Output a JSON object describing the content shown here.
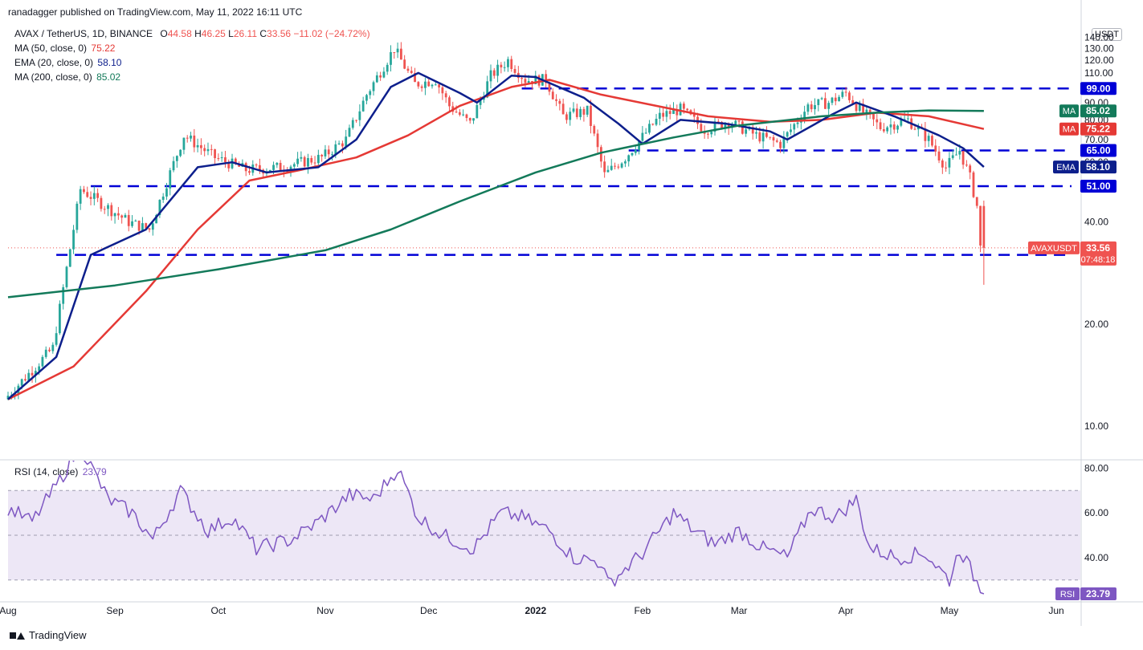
{
  "header": {
    "published": "ranadagger published on TradingView.com, May 11, 2022 16:11 UTC"
  },
  "legend": {
    "symbol": "AVAX / TetherUS, 1D, BINANCE",
    "o_label": "O",
    "o": "44.58",
    "h_label": "H",
    "h": "46.25",
    "l_label": "L",
    "l": "26.11",
    "c_label": "C",
    "c": "33.56",
    "change": "−11.02 (−24.72%)",
    "ma50": {
      "label": "MA (50, close, 0)",
      "value": "75.22"
    },
    "ema20": {
      "label": "EMA (20, close, 0)",
      "value": "58.10"
    },
    "ma200": {
      "label": "MA (200, close, 0)",
      "value": "85.02"
    },
    "rsi": {
      "label": "RSI (14, close)",
      "value": "23.79"
    }
  },
  "currency_label": "USDT",
  "footer": {
    "brand": "TradingView"
  },
  "colors": {
    "up": "#26a69a",
    "down": "#ef5350",
    "ma50": "#e53935",
    "ema20": "#0d1f8c",
    "ma200": "#137a5a",
    "levels": "#0000d6",
    "rsi": "#7e57c2",
    "rsi_band": "#ede7f6"
  },
  "chart_data": [
    {
      "type": "candlestick",
      "title": "AVAX / TetherUS, 1D, BINANCE",
      "x_tick_labels": [
        "Aug",
        "Sep",
        "Oct",
        "Nov",
        "Dec",
        "2022",
        "Feb",
        "Mar",
        "Apr",
        "May",
        "Jun"
      ],
      "x_range": [
        "2021-08-01",
        "2022-06-01"
      ],
      "y_ticks": [
        10,
        20,
        40,
        50,
        60,
        70,
        80,
        90,
        100,
        110,
        120,
        130,
        140
      ],
      "y_tick_labels": [
        "10.00",
        "20.00",
        "40.00",
        "50.00",
        "60.00",
        "70.00",
        "80.00",
        "90.00",
        "100.00",
        "110.00",
        "120.00",
        "130.00",
        "140.00"
      ],
      "y_scale": "log",
      "ylim": [
        8,
        155
      ],
      "horizontal_levels": [
        {
          "value": 99.0,
          "label": "99.00",
          "start": "2021-12-28"
        },
        {
          "value": 65.0,
          "label": "65.00",
          "start": "2022-01-28"
        },
        {
          "value": 51.0,
          "label": "51.00",
          "start": "2021-08-25"
        },
        {
          "value": 32.0,
          "label": "32.00",
          "start": "2021-08-15"
        }
      ],
      "key_points": [
        {
          "date": "2021-08-01",
          "close": 12
        },
        {
          "date": "2021-08-15",
          "close": 17
        },
        {
          "date": "2021-08-23",
          "close": 50
        },
        {
          "date": "2021-09-06",
          "close": 40
        },
        {
          "date": "2021-09-12",
          "close": 38
        },
        {
          "date": "2021-09-22",
          "close": 72
        },
        {
          "date": "2021-10-01",
          "close": 62
        },
        {
          "date": "2021-10-10",
          "close": 57
        },
        {
          "date": "2021-10-20",
          "close": 58
        },
        {
          "date": "2021-11-01",
          "close": 62
        },
        {
          "date": "2021-11-08",
          "close": 70
        },
        {
          "date": "2021-11-14",
          "close": 95
        },
        {
          "date": "2021-11-22",
          "close": 130
        },
        {
          "date": "2021-11-25",
          "close": 115
        },
        {
          "date": "2021-11-28",
          "close": 102
        },
        {
          "date": "2021-12-04",
          "close": 105
        },
        {
          "date": "2021-12-08",
          "close": 88
        },
        {
          "date": "2021-12-14",
          "close": 78
        },
        {
          "date": "2021-12-20",
          "close": 108
        },
        {
          "date": "2021-12-25",
          "close": 120
        },
        {
          "date": "2021-12-30",
          "close": 105
        },
        {
          "date": "2022-01-05",
          "close": 105
        },
        {
          "date": "2022-01-10",
          "close": 82
        },
        {
          "date": "2022-01-17",
          "close": 85
        },
        {
          "date": "2022-01-22",
          "close": 55
        },
        {
          "date": "2022-01-28",
          "close": 62
        },
        {
          "date": "2022-02-07",
          "close": 82
        },
        {
          "date": "2022-02-13",
          "close": 86
        },
        {
          "date": "2022-02-20",
          "close": 75
        },
        {
          "date": "2022-02-27",
          "close": 79
        },
        {
          "date": "2022-03-07",
          "close": 72
        },
        {
          "date": "2022-03-14",
          "close": 68
        },
        {
          "date": "2022-03-22",
          "close": 88
        },
        {
          "date": "2022-03-28",
          "close": 90
        },
        {
          "date": "2022-04-02",
          "close": 96
        },
        {
          "date": "2022-04-06",
          "close": 86
        },
        {
          "date": "2022-04-12",
          "close": 76
        },
        {
          "date": "2022-04-20",
          "close": 80
        },
        {
          "date": "2022-04-26",
          "close": 70
        },
        {
          "date": "2022-05-01",
          "close": 58
        },
        {
          "date": "2022-05-05",
          "close": 65
        },
        {
          "date": "2022-05-08",
          "close": 54
        },
        {
          "date": "2022-05-10",
          "close": 44.58
        },
        {
          "date": "2022-05-11",
          "close": 33.56
        }
      ],
      "series": [
        {
          "name": "MA (50, close, 0)",
          "last": 75.22,
          "points": [
            [
              "2021-08-01",
              12
            ],
            [
              "2021-08-20",
              15
            ],
            [
              "2021-09-10",
              25
            ],
            [
              "2021-09-25",
              38
            ],
            [
              "2021-10-10",
              53
            ],
            [
              "2021-10-25",
              57
            ],
            [
              "2021-11-10",
              62
            ],
            [
              "2021-11-25",
              72
            ],
            [
              "2021-12-10",
              88
            ],
            [
              "2021-12-25",
              100
            ],
            [
              "2022-01-05",
              105
            ],
            [
              "2022-01-20",
              95
            ],
            [
              "2022-02-05",
              88
            ],
            [
              "2022-02-20",
              82
            ],
            [
              "2022-03-10",
              79
            ],
            [
              "2022-03-25",
              80
            ],
            [
              "2022-04-10",
              84
            ],
            [
              "2022-04-25",
              82
            ],
            [
              "2022-05-11",
              75.22
            ]
          ]
        },
        {
          "name": "EMA (20, close, 0)",
          "last": 58.1,
          "points": [
            [
              "2021-08-01",
              12
            ],
            [
              "2021-08-15",
              16
            ],
            [
              "2021-08-25",
              32
            ],
            [
              "2021-09-10",
              38
            ],
            [
              "2021-09-25",
              58
            ],
            [
              "2021-10-05",
              60
            ],
            [
              "2021-10-15",
              56
            ],
            [
              "2021-10-30",
              58
            ],
            [
              "2021-11-10",
              70
            ],
            [
              "2021-11-20",
              100
            ],
            [
              "2021-11-28",
              110
            ],
            [
              "2021-12-10",
              96
            ],
            [
              "2021-12-15",
              90
            ],
            [
              "2021-12-25",
              108
            ],
            [
              "2022-01-01",
              107
            ],
            [
              "2022-01-15",
              93
            ],
            [
              "2022-01-25",
              78
            ],
            [
              "2022-02-01",
              68
            ],
            [
              "2022-02-12",
              80
            ],
            [
              "2022-02-25",
              78
            ],
            [
              "2022-03-10",
              74
            ],
            [
              "2022-03-15",
              70
            ],
            [
              "2022-03-28",
              83
            ],
            [
              "2022-04-04",
              90
            ],
            [
              "2022-04-15",
              82
            ],
            [
              "2022-04-28",
              72
            ],
            [
              "2022-05-05",
              66
            ],
            [
              "2022-05-11",
              58.1
            ]
          ]
        },
        {
          "name": "MA (200, close, 0)",
          "last": 85.02,
          "points": [
            [
              "2021-08-01",
              24
            ],
            [
              "2021-09-01",
              26
            ],
            [
              "2021-10-01",
              29
            ],
            [
              "2021-11-01",
              33
            ],
            [
              "2021-11-20",
              38
            ],
            [
              "2021-12-10",
              46
            ],
            [
              "2022-01-01",
              56
            ],
            [
              "2022-01-20",
              64
            ],
            [
              "2022-02-10",
              71
            ],
            [
              "2022-03-01",
              77
            ],
            [
              "2022-03-25",
              82
            ],
            [
              "2022-04-10",
              84
            ],
            [
              "2022-04-25",
              85.3
            ],
            [
              "2022-05-11",
              85.02
            ]
          ]
        }
      ],
      "price_labels": [
        {
          "text": "AVAXUSDT"
        },
        {
          "text": "33.56",
          "sub": "07:48:18"
        }
      ]
    },
    {
      "type": "line",
      "title": "RSI (14, close)",
      "y_ticks": [
        40,
        60,
        80
      ],
      "y_tick_labels": [
        "40.00",
        "60.00",
        "80.00"
      ],
      "ylim": [
        22,
        83
      ],
      "band": [
        30,
        70
      ],
      "midline": 50,
      "last": 23.79,
      "series": [
        {
          "name": "RSI",
          "points": [
            [
              "2021-08-01",
              62
            ],
            [
              "2021-08-08",
              56
            ],
            [
              "2021-08-15",
              72
            ],
            [
              "2021-08-22",
              90
            ],
            [
              "2021-08-30",
              66
            ],
            [
              "2021-09-06",
              60
            ],
            [
              "2021-09-12",
              48
            ],
            [
              "2021-09-20",
              70
            ],
            [
              "2021-09-28",
              52
            ],
            [
              "2021-10-05",
              58
            ],
            [
              "2021-10-12",
              44
            ],
            [
              "2021-10-22",
              48
            ],
            [
              "2021-10-30",
              56
            ],
            [
              "2021-11-08",
              68
            ],
            [
              "2021-11-15",
              66
            ],
            [
              "2021-11-22",
              80
            ],
            [
              "2021-11-28",
              58
            ],
            [
              "2021-12-05",
              50
            ],
            [
              "2021-12-14",
              44
            ],
            [
              "2021-12-22",
              60
            ],
            [
              "2021-12-28",
              58
            ],
            [
              "2022-01-05",
              52
            ],
            [
              "2022-01-12",
              40
            ],
            [
              "2022-01-20",
              38
            ],
            [
              "2022-01-22",
              28
            ],
            [
              "2022-02-01",
              42
            ],
            [
              "2022-02-10",
              60
            ],
            [
              "2022-02-16",
              52
            ],
            [
              "2022-02-22",
              46
            ],
            [
              "2022-03-01",
              52
            ],
            [
              "2022-03-08",
              44
            ],
            [
              "2022-03-15",
              40
            ],
            [
              "2022-03-22",
              62
            ],
            [
              "2022-03-29",
              58
            ],
            [
              "2022-04-04",
              66
            ],
            [
              "2022-04-08",
              44
            ],
            [
              "2022-04-16",
              40
            ],
            [
              "2022-04-24",
              42
            ],
            [
              "2022-05-01",
              30
            ],
            [
              "2022-05-04",
              44
            ],
            [
              "2022-05-08",
              32
            ],
            [
              "2022-05-11",
              23.79
            ]
          ]
        }
      ],
      "price_labels": [
        {
          "text": "RSI"
        },
        {
          "text": "23.79"
        }
      ]
    }
  ]
}
